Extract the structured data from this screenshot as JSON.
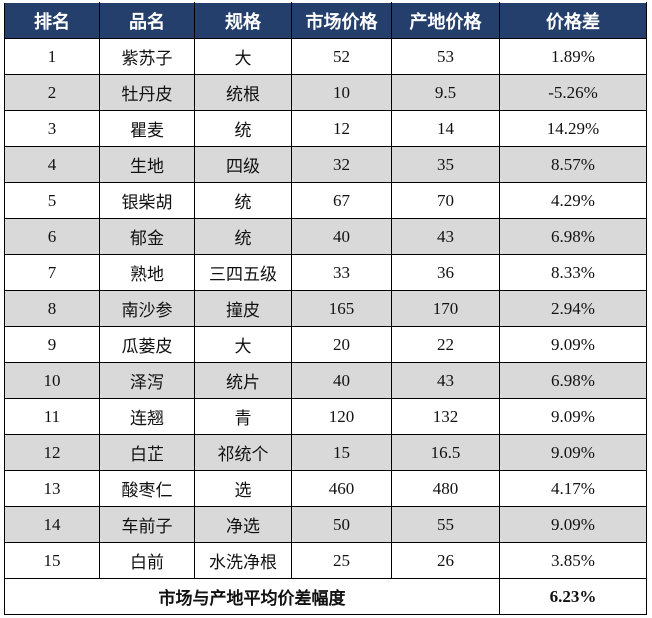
{
  "table": {
    "header": [
      "排名",
      "品名",
      "规格",
      "市场价格",
      "产地价格",
      "价格差"
    ],
    "rows": [
      [
        "1",
        "紫苏子",
        "大",
        "52",
        "53",
        "1.89%"
      ],
      [
        "2",
        "牡丹皮",
        "统根",
        "10",
        "9.5",
        "-5.26%"
      ],
      [
        "3",
        "瞿麦",
        "统",
        "12",
        "14",
        "14.29%"
      ],
      [
        "4",
        "生地",
        "四级",
        "32",
        "35",
        "8.57%"
      ],
      [
        "5",
        "银柴胡",
        "统",
        "67",
        "70",
        "4.29%"
      ],
      [
        "6",
        "郁金",
        "统",
        "40",
        "43",
        "6.98%"
      ],
      [
        "7",
        "熟地",
        "三四五级",
        "33",
        "36",
        "8.33%"
      ],
      [
        "8",
        "南沙参",
        "撞皮",
        "165",
        "170",
        "2.94%"
      ],
      [
        "9",
        "瓜蒌皮",
        "大",
        "20",
        "22",
        "9.09%"
      ],
      [
        "10",
        "泽泻",
        "统片",
        "40",
        "43",
        "6.98%"
      ],
      [
        "11",
        "连翘",
        "青",
        "120",
        "132",
        "9.09%"
      ],
      [
        "12",
        "白芷",
        "祁统个",
        "15",
        "16.5",
        "9.09%"
      ],
      [
        "13",
        "酸枣仁",
        "选",
        "460",
        "480",
        "4.17%"
      ],
      [
        "14",
        "车前子",
        "净选",
        "50",
        "55",
        "9.09%"
      ],
      [
        "15",
        "白前",
        "水洗净根",
        "25",
        "26",
        "3.85%"
      ]
    ],
    "footer": {
      "label": "市场与产地平均价差幅度",
      "value": "6.23%"
    }
  }
}
